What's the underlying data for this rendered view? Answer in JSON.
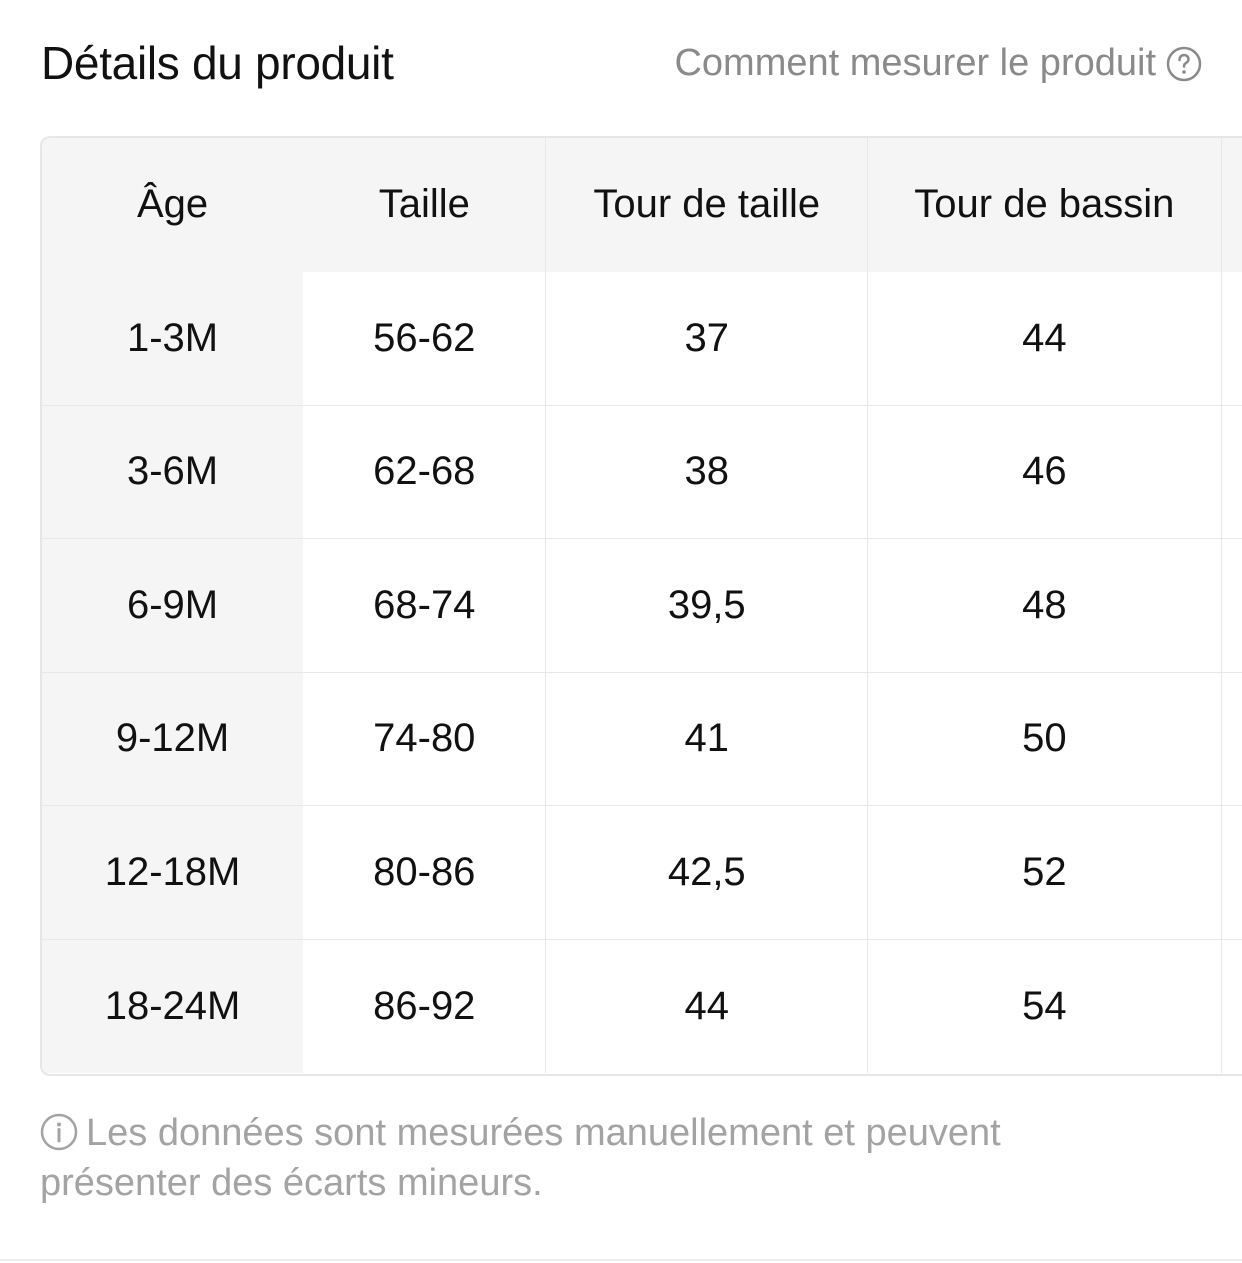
{
  "header": {
    "title": "Détails du produit",
    "measure_link": "Comment mesurer le produit",
    "help_icon": "question-circle-icon"
  },
  "size_table": {
    "columns": [
      "Âge",
      "Taille",
      "Tour de taille",
      "Tour de bassin"
    ],
    "rows": [
      [
        "1-3M",
        "56-62",
        "37",
        "44"
      ],
      [
        "3-6M",
        "62-68",
        "38",
        "46"
      ],
      [
        "6-9M",
        "68-74",
        "39,5",
        "48"
      ],
      [
        "9-12M",
        "74-80",
        "41",
        "50"
      ],
      [
        "12-18M",
        "80-86",
        "42,5",
        "52"
      ],
      [
        "18-24M",
        "86-92",
        "44",
        "54"
      ]
    ]
  },
  "footnote": {
    "icon": "info-circle-icon",
    "text": "Les données sont mesurées manuellement et peuvent présenter des écarts mineurs."
  },
  "colors": {
    "muted_text": "#8a8a8a",
    "header_bg": "#f5f5f5",
    "border": "#e6e6e6"
  }
}
